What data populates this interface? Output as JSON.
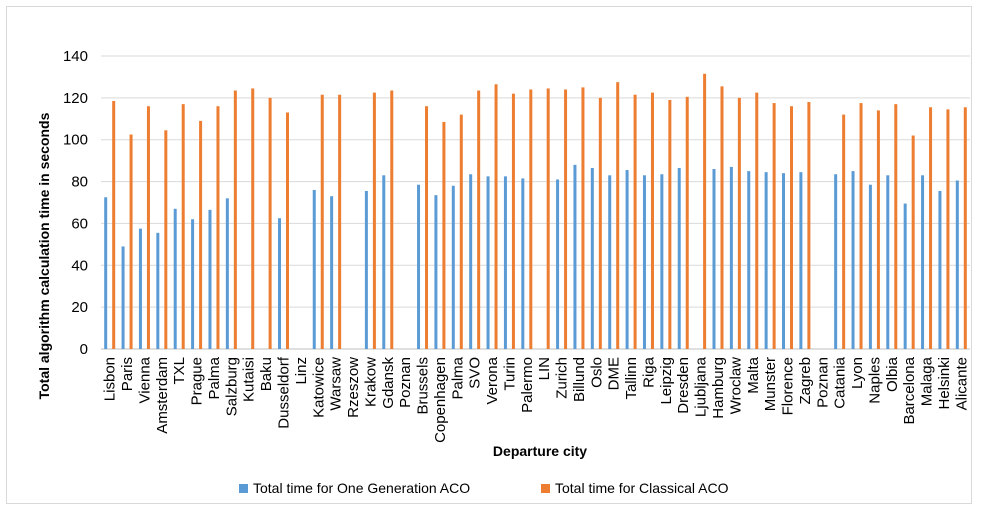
{
  "chart_data": {
    "type": "bar",
    "title": "",
    "xlabel": "Departure city",
    "ylabel": "Total algorithm calculation time in seconds",
    "ylim": [
      0,
      140
    ],
    "yticks": [
      0,
      20,
      40,
      60,
      80,
      100,
      120,
      140
    ],
    "grid": true,
    "legend_position": "bottom",
    "categories": [
      "Lisbon",
      "Paris",
      "Vienna",
      "Amsterdam",
      "TXL",
      "Prague",
      "Palma",
      "Salzburg",
      "Kutaisi",
      "Baku",
      "Dusseldorf",
      "Linz",
      "Katowice",
      "Warsaw",
      "Rzeszow",
      "Krakow",
      "Gdansk",
      "Poznan",
      "Brussels",
      "Copenhagen",
      "Palma",
      "SVO",
      "Verona",
      "Turin",
      "Palermo",
      "LIN",
      "Zurich",
      "Billund",
      "Oslo",
      "DME",
      "Tallinn",
      "Riga",
      "Leipzig",
      "Dresden",
      "Ljubljana",
      "Hamburg",
      "Wroclaw",
      "Malta",
      "Munster",
      "Florence",
      "Zagreb",
      "Poznan",
      "Catania",
      "Lyon",
      "Naples",
      "Olbia",
      "Barcelona",
      "Malaga",
      "Helsinki",
      "Alicante"
    ],
    "series": [
      {
        "name": "Total time for One Generation ACO",
        "color": "#5b9bd5",
        "values": [
          72.5,
          49,
          57.5,
          55.5,
          67,
          62,
          66.5,
          72,
          null,
          null,
          62.5,
          null,
          76,
          73,
          null,
          75.5,
          83,
          null,
          78.5,
          73.5,
          78,
          83.5,
          82.5,
          82.5,
          81.5,
          null,
          81,
          88,
          86.5,
          83,
          85.5,
          83,
          83.5,
          86.5,
          null,
          86,
          87,
          85,
          84.5,
          84,
          84.5,
          null,
          83.5,
          85,
          78.5,
          83,
          69.5,
          83,
          75.5,
          80.5
        ]
      },
      {
        "name": "Total time for Classical ACO",
        "color": "#ed7d31",
        "values": [
          118.5,
          102.5,
          116,
          104.5,
          117,
          109,
          116,
          123.5,
          124.5,
          120,
          113,
          null,
          121.5,
          121.5,
          null,
          122.5,
          123.5,
          null,
          116,
          108.5,
          112,
          123.5,
          126.5,
          122,
          124,
          124.5,
          124,
          125,
          120,
          127.5,
          121.5,
          122.5,
          119,
          120.5,
          131.5,
          125.5,
          120,
          122.5,
          117.5,
          116,
          118,
          null,
          112,
          117.5,
          114,
          117,
          102,
          115.5,
          114.5,
          115.5
        ]
      }
    ]
  }
}
